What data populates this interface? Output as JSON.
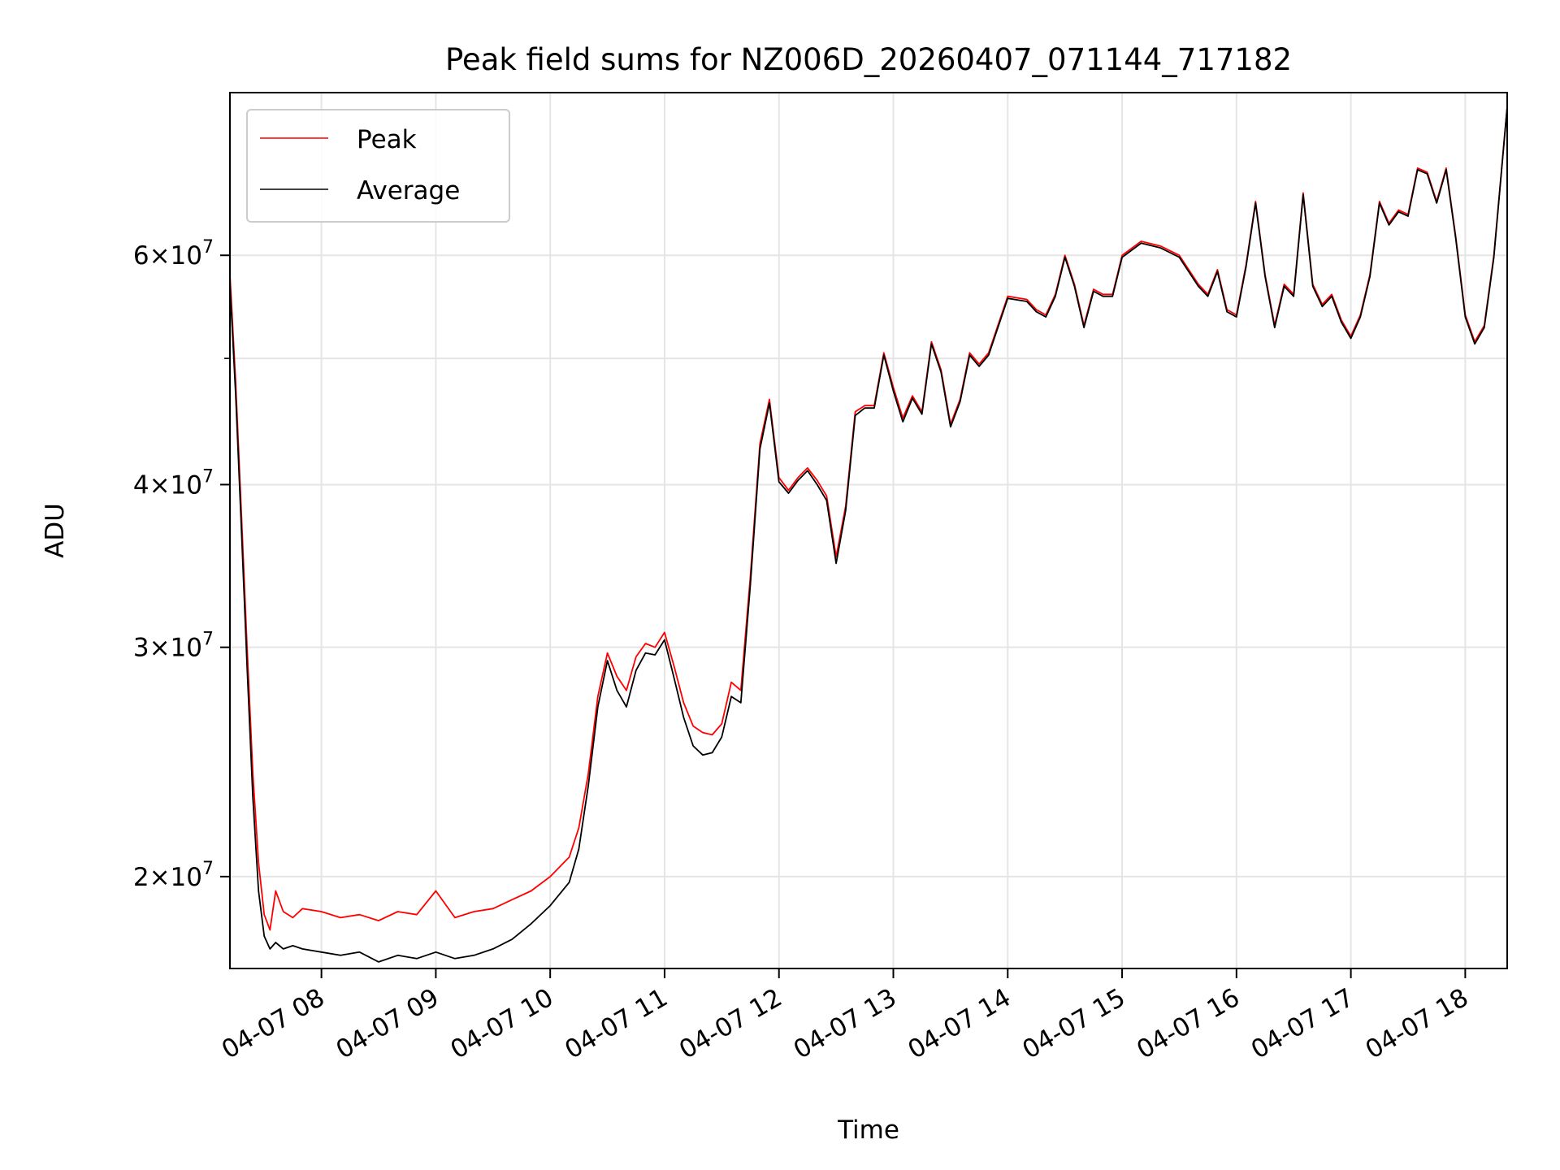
{
  "chart_data": {
    "type": "line",
    "title": "Peak field sums for NZ006D_20260407_071144_717182",
    "xlabel": "Time",
    "ylabel": "ADU",
    "y_scale": "log",
    "ylim": [
      17000000,
      80000000
    ],
    "xlim": [
      "04-07 07:12",
      "04-07 18:22"
    ],
    "grid": true,
    "legend_position": "upper-left",
    "x_ticks": [
      "04-07 08",
      "04-07 09",
      "04-07 10",
      "04-07 11",
      "04-07 12",
      "04-07 13",
      "04-07 14",
      "04-07 15",
      "04-07 16",
      "04-07 17",
      "04-07 18"
    ],
    "y_ticks": [
      {
        "value": 20000000,
        "mantissa": "2",
        "base": "10",
        "exp": "7"
      },
      {
        "value": 30000000,
        "mantissa": "3",
        "base": "10",
        "exp": "7"
      },
      {
        "value": 40000000,
        "mantissa": "4",
        "base": "10",
        "exp": "7"
      },
      {
        "value": 60000000,
        "mantissa": "6",
        "base": "10",
        "exp": "7"
      }
    ],
    "minor_y_ticks": [
      50000000
    ],
    "series": [
      {
        "name": "Peak",
        "color": "#ff0000",
        "x": [
          "04-07 07:12",
          "04-07 07:15",
          "04-07 07:18",
          "04-07 07:21",
          "04-07 07:24",
          "04-07 07:27",
          "04-07 07:30",
          "04-07 07:33",
          "04-07 07:36",
          "04-07 07:40",
          "04-07 07:45",
          "04-07 07:50",
          "04-07 08:00",
          "04-07 08:10",
          "04-07 08:20",
          "04-07 08:30",
          "04-07 08:40",
          "04-07 08:50",
          "04-07 09:00",
          "04-07 09:10",
          "04-07 09:20",
          "04-07 09:30",
          "04-07 09:40",
          "04-07 09:50",
          "04-07 10:00",
          "04-07 10:10",
          "04-07 10:15",
          "04-07 10:20",
          "04-07 10:25",
          "04-07 10:30",
          "04-07 10:35",
          "04-07 10:40",
          "04-07 10:45",
          "04-07 10:50",
          "04-07 10:55",
          "04-07 11:00",
          "04-07 11:05",
          "04-07 11:10",
          "04-07 11:15",
          "04-07 11:20",
          "04-07 11:25",
          "04-07 11:30",
          "04-07 11:35",
          "04-07 11:40",
          "04-07 11:45",
          "04-07 11:50",
          "04-07 11:55",
          "04-07 12:00",
          "04-07 12:05",
          "04-07 12:10",
          "04-07 12:15",
          "04-07 12:20",
          "04-07 12:25",
          "04-07 12:30",
          "04-07 12:35",
          "04-07 12:40",
          "04-07 12:45",
          "04-07 12:50",
          "04-07 12:55",
          "04-07 13:00",
          "04-07 13:05",
          "04-07 13:10",
          "04-07 13:15",
          "04-07 13:20",
          "04-07 13:25",
          "04-07 13:30",
          "04-07 13:35",
          "04-07 13:40",
          "04-07 13:45",
          "04-07 13:50",
          "04-07 14:00",
          "04-07 14:10",
          "04-07 14:15",
          "04-07 14:20",
          "04-07 14:25",
          "04-07 14:30",
          "04-07 14:35",
          "04-07 14:40",
          "04-07 14:45",
          "04-07 14:50",
          "04-07 14:55",
          "04-07 15:00",
          "04-07 15:10",
          "04-07 15:20",
          "04-07 15:30",
          "04-07 15:40",
          "04-07 15:45",
          "04-07 15:50",
          "04-07 15:55",
          "04-07 16:00",
          "04-07 16:05",
          "04-07 16:10",
          "04-07 16:15",
          "04-07 16:20",
          "04-07 16:25",
          "04-07 16:30",
          "04-07 16:35",
          "04-07 16:40",
          "04-07 16:45",
          "04-07 16:50",
          "04-07 16:55",
          "04-07 17:00",
          "04-07 17:05",
          "04-07 17:10",
          "04-07 17:15",
          "04-07 17:20",
          "04-07 17:25",
          "04-07 17:30",
          "04-07 17:35",
          "04-07 17:40",
          "04-07 17:45",
          "04-07 17:50",
          "04-07 17:55",
          "04-07 18:00",
          "04-07 18:05",
          "04-07 18:10",
          "04-07 18:15",
          "04-07 18:22"
        ],
        "values": [
          58000000,
          48000000,
          38000000,
          30000000,
          24000000,
          20500000,
          18700000,
          18200000,
          19500000,
          18800000,
          18600000,
          18900000,
          18800000,
          18600000,
          18700000,
          18500000,
          18800000,
          18700000,
          19500000,
          18600000,
          18800000,
          18900000,
          19200000,
          19500000,
          20000000,
          20700000,
          21800000,
          24000000,
          27500000,
          29700000,
          28500000,
          27800000,
          29500000,
          30200000,
          30000000,
          30800000,
          29000000,
          27200000,
          26100000,
          25800000,
          25700000,
          26200000,
          28200000,
          27800000,
          34000000,
          43000000,
          46500000,
          40500000,
          39600000,
          40500000,
          41200000,
          40300000,
          39200000,
          35200000,
          38500000,
          45500000,
          46000000,
          46000000,
          50500000,
          47500000,
          45000000,
          46800000,
          45500000,
          51500000,
          49000000,
          44500000,
          46500000,
          50500000,
          49500000,
          50500000,
          55800000,
          55500000,
          54500000,
          54000000,
          56000000,
          60000000,
          57000000,
          53000000,
          56500000,
          56000000,
          56000000,
          60000000,
          61500000,
          61000000,
          60000000,
          57000000,
          56000000,
          58500000,
          54500000,
          54000000,
          59000000,
          66000000,
          58000000,
          53000000,
          57000000,
          56000000,
          67000000,
          57000000,
          55000000,
          56000000,
          53500000,
          52000000,
          54000000,
          58000000,
          66000000,
          63500000,
          65000000,
          64500000,
          70000000,
          69500000,
          66000000,
          70000000,
          62000000,
          54000000,
          51500000,
          53000000,
          60000000,
          78000000
        ]
      },
      {
        "name": "Average",
        "color": "#000000",
        "x": [
          "04-07 07:12",
          "04-07 07:15",
          "04-07 07:18",
          "04-07 07:21",
          "04-07 07:24",
          "04-07 07:27",
          "04-07 07:30",
          "04-07 07:33",
          "04-07 07:36",
          "04-07 07:40",
          "04-07 07:45",
          "04-07 07:50",
          "04-07 08:00",
          "04-07 08:10",
          "04-07 08:20",
          "04-07 08:30",
          "04-07 08:40",
          "04-07 08:50",
          "04-07 09:00",
          "04-07 09:10",
          "04-07 09:20",
          "04-07 09:30",
          "04-07 09:40",
          "04-07 09:50",
          "04-07 10:00",
          "04-07 10:10",
          "04-07 10:15",
          "04-07 10:20",
          "04-07 10:25",
          "04-07 10:30",
          "04-07 10:35",
          "04-07 10:40",
          "04-07 10:45",
          "04-07 10:50",
          "04-07 10:55",
          "04-07 11:00",
          "04-07 11:05",
          "04-07 11:10",
          "04-07 11:15",
          "04-07 11:20",
          "04-07 11:25",
          "04-07 11:30",
          "04-07 11:35",
          "04-07 11:40",
          "04-07 11:45",
          "04-07 11:50",
          "04-07 11:55",
          "04-07 12:00",
          "04-07 12:05",
          "04-07 12:10",
          "04-07 12:15",
          "04-07 12:20",
          "04-07 12:25",
          "04-07 12:30",
          "04-07 12:35",
          "04-07 12:40",
          "04-07 12:45",
          "04-07 12:50",
          "04-07 12:55",
          "04-07 13:00",
          "04-07 13:05",
          "04-07 13:10",
          "04-07 13:15",
          "04-07 13:20",
          "04-07 13:25",
          "04-07 13:30",
          "04-07 13:35",
          "04-07 13:40",
          "04-07 13:45",
          "04-07 13:50",
          "04-07 14:00",
          "04-07 14:10",
          "04-07 14:15",
          "04-07 14:20",
          "04-07 14:25",
          "04-07 14:30",
          "04-07 14:35",
          "04-07 14:40",
          "04-07 14:45",
          "04-07 14:50",
          "04-07 14:55",
          "04-07 15:00",
          "04-07 15:10",
          "04-07 15:20",
          "04-07 15:30",
          "04-07 15:40",
          "04-07 15:45",
          "04-07 15:50",
          "04-07 15:55",
          "04-07 16:00",
          "04-07 16:05",
          "04-07 16:10",
          "04-07 16:15",
          "04-07 16:20",
          "04-07 16:25",
          "04-07 16:30",
          "04-07 16:35",
          "04-07 16:40",
          "04-07 16:45",
          "04-07 16:50",
          "04-07 16:55",
          "04-07 17:00",
          "04-07 17:05",
          "04-07 17:10",
          "04-07 17:15",
          "04-07 17:20",
          "04-07 17:25",
          "04-07 17:30",
          "04-07 17:35",
          "04-07 17:40",
          "04-07 17:45",
          "04-07 17:50",
          "04-07 17:55",
          "04-07 18:00",
          "04-07 18:05",
          "04-07 18:10",
          "04-07 18:15",
          "04-07 18:22"
        ],
        "values": [
          57000000,
          47000000,
          37000000,
          29000000,
          23000000,
          19500000,
          18000000,
          17600000,
          17800000,
          17600000,
          17700000,
          17600000,
          17500000,
          17400000,
          17500000,
          17200000,
          17400000,
          17300000,
          17500000,
          17300000,
          17400000,
          17600000,
          17900000,
          18400000,
          19000000,
          19800000,
          21000000,
          23500000,
          27000000,
          29300000,
          27800000,
          27000000,
          28800000,
          29700000,
          29600000,
          30400000,
          28400000,
          26500000,
          25200000,
          24800000,
          24900000,
          25600000,
          27500000,
          27200000,
          33500000,
          42600000,
          46200000,
          40200000,
          39400000,
          40300000,
          41000000,
          40000000,
          38900000,
          34800000,
          38200000,
          45200000,
          45800000,
          45800000,
          50300000,
          47200000,
          44700000,
          46600000,
          45300000,
          51300000,
          48800000,
          44300000,
          46300000,
          50300000,
          49300000,
          50300000,
          55600000,
          55300000,
          54300000,
          53800000,
          55800000,
          59800000,
          56800000,
          52800000,
          56300000,
          55800000,
          55800000,
          59800000,
          61300000,
          60800000,
          59800000,
          56800000,
          55800000,
          58300000,
          54300000,
          53800000,
          58800000,
          65800000,
          57800000,
          52800000,
          56800000,
          55800000,
          66800000,
          56800000,
          54800000,
          55800000,
          53300000,
          51800000,
          53800000,
          57800000,
          65800000,
          63300000,
          64800000,
          64300000,
          69800000,
          69300000,
          65800000,
          69800000,
          61800000,
          53800000,
          51300000,
          52800000,
          59800000,
          78000000
        ]
      }
    ]
  }
}
